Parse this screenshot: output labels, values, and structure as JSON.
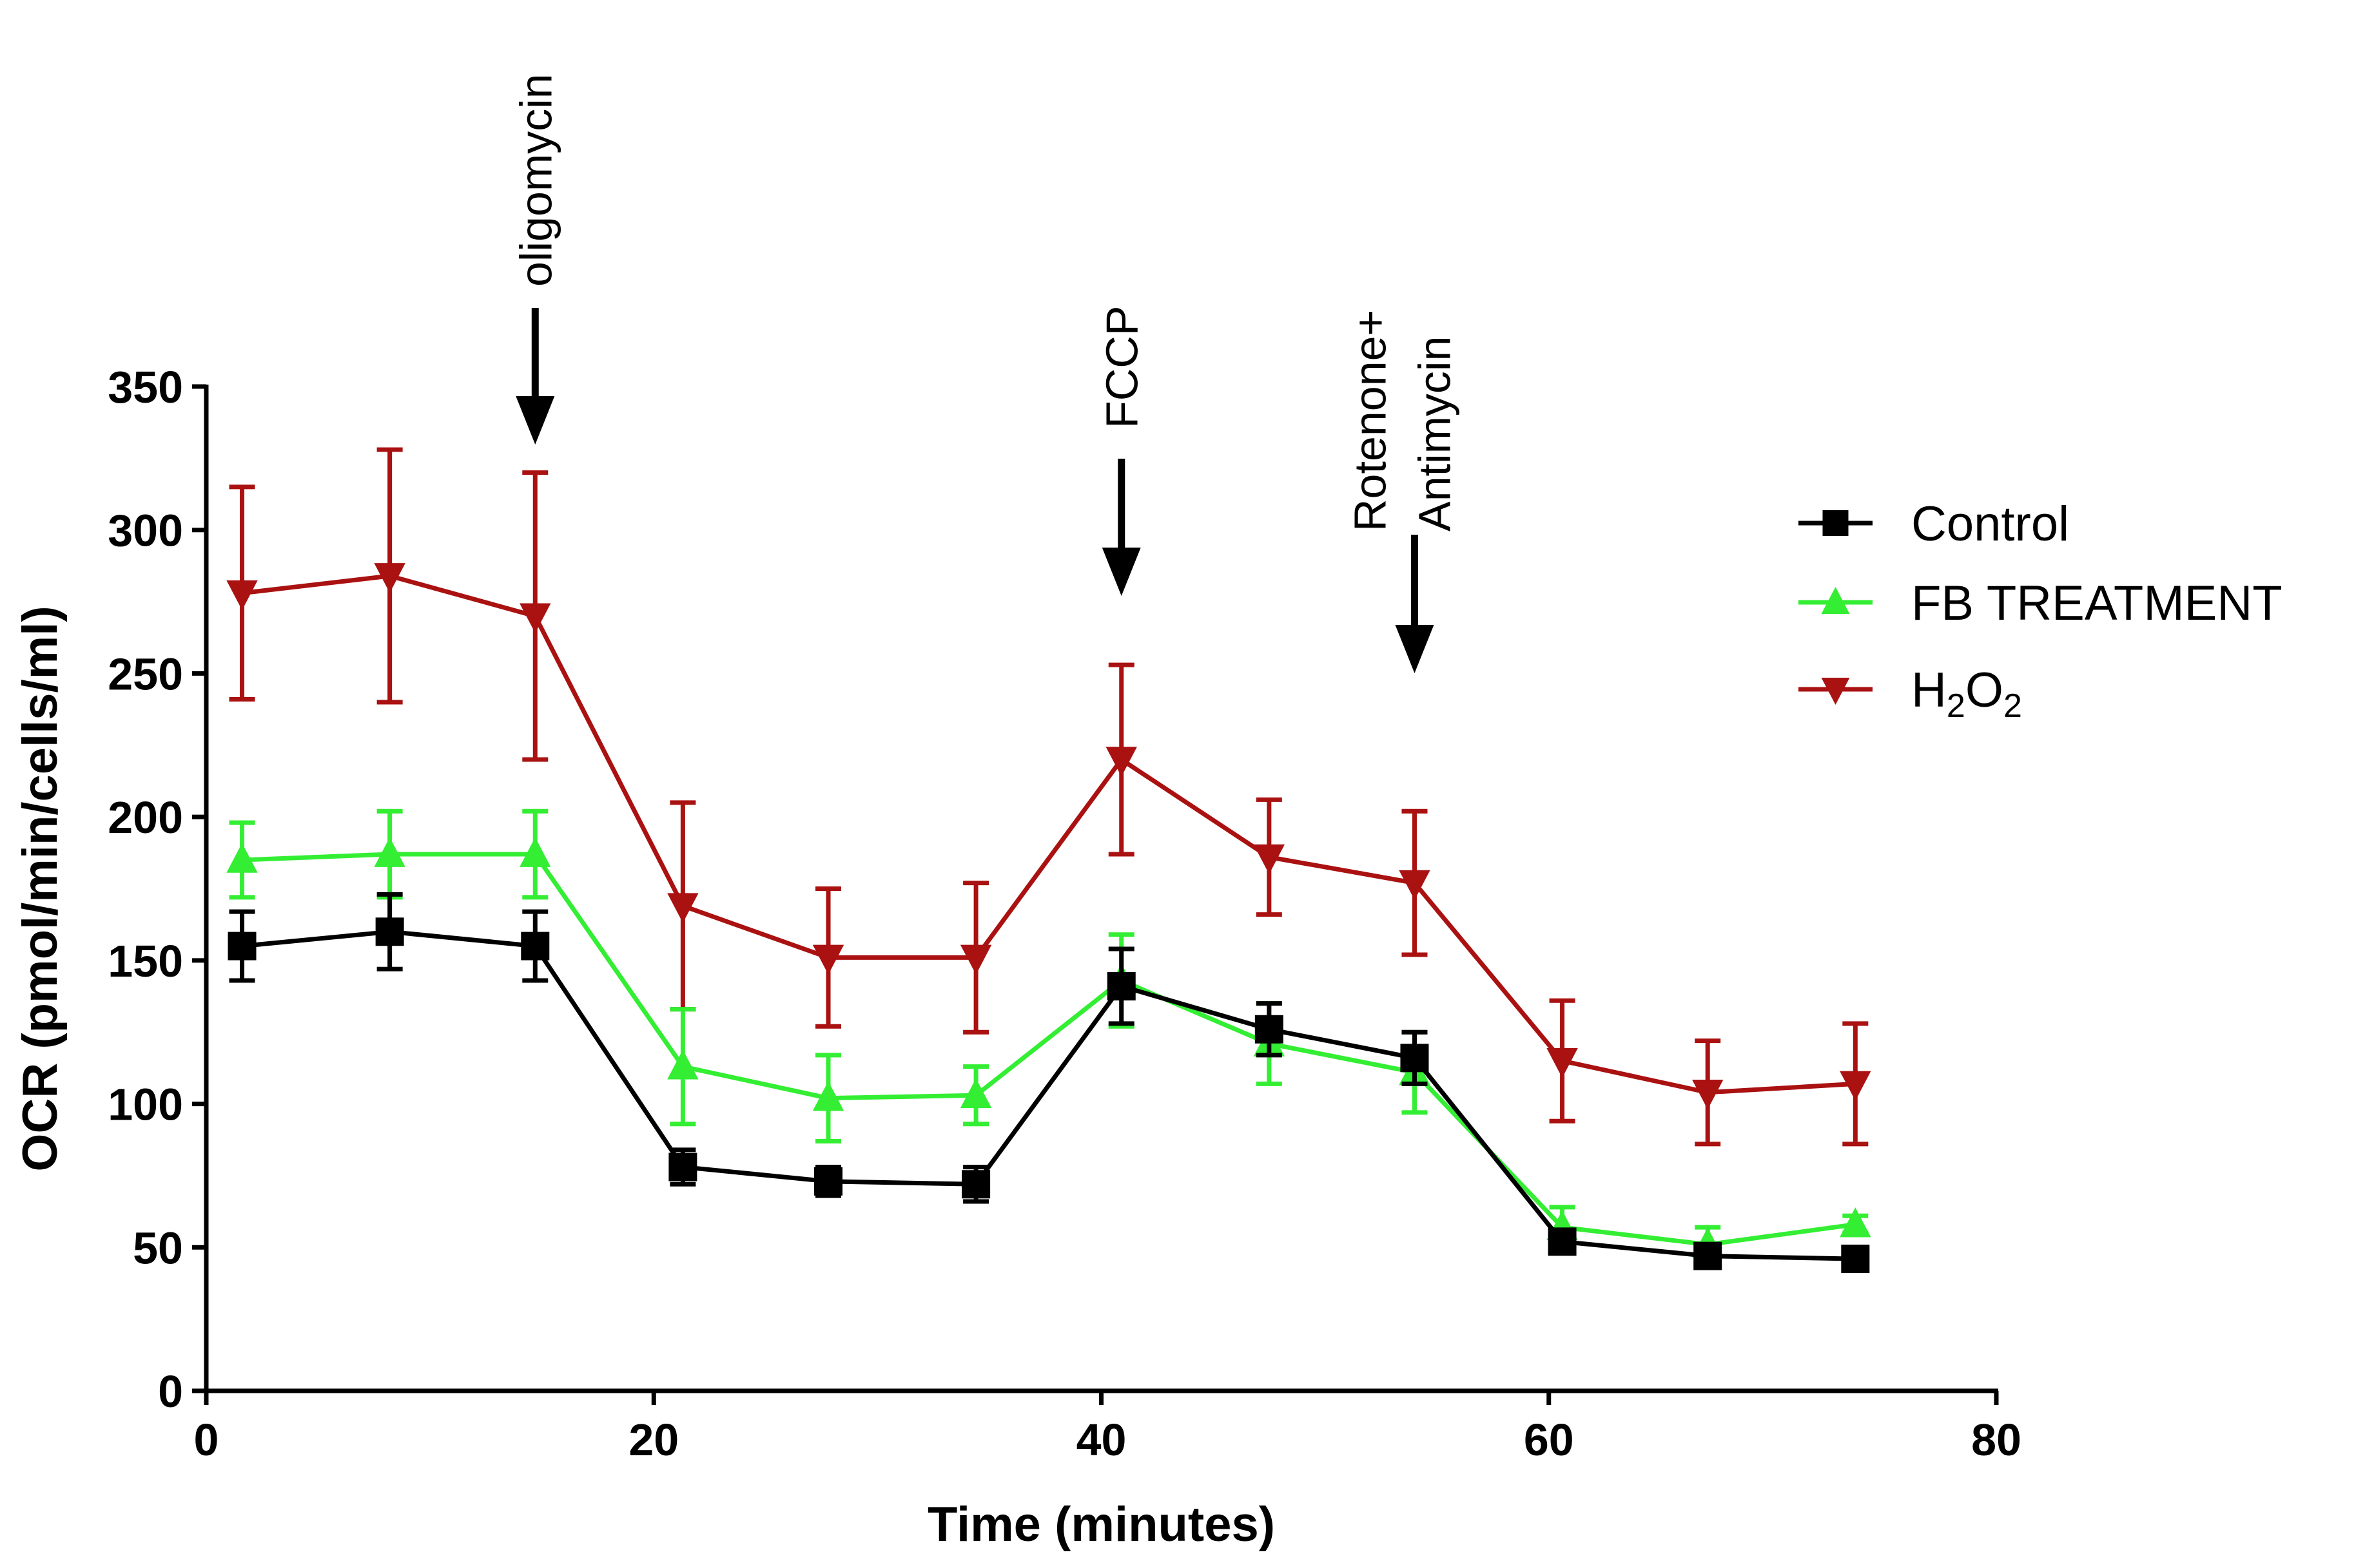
{
  "chart_data": {
    "type": "line",
    "title": "",
    "xlabel": "Time (minutes)",
    "ylabel": "OCR (pmol/min/cells/ml)",
    "xlim": [
      0,
      80
    ],
    "ylim": [
      0,
      350
    ],
    "xticks": [
      0,
      20,
      40,
      60,
      80
    ],
    "yticks": [
      0,
      50,
      100,
      150,
      200,
      250,
      300,
      350
    ],
    "x": [
      1.6,
      8.2,
      14.7,
      21.3,
      27.8,
      34.4,
      40.9,
      47.5,
      54.0,
      60.6,
      67.1,
      73.7
    ],
    "series": [
      {
        "name": "Control",
        "color": "#000000",
        "marker": "square",
        "values": [
          155,
          160,
          155,
          78,
          73,
          72,
          141,
          126,
          116,
          52,
          47,
          46
        ],
        "errors": [
          12,
          13,
          12,
          6,
          5,
          6,
          13,
          9,
          9,
          4,
          4,
          4
        ]
      },
      {
        "name": "FB TREATMENT",
        "color": "#33EE33",
        "marker": "triangle-up",
        "values": [
          185,
          187,
          187,
          113,
          102,
          103,
          143,
          121,
          111,
          57,
          51,
          58
        ],
        "errors": [
          13,
          15,
          15,
          20,
          15,
          10,
          16,
          14,
          14,
          7,
          6,
          3
        ]
      },
      {
        "name": "H2O2",
        "name_base": "H",
        "name_sub1": "2",
        "name_mid": "O",
        "name_sub2": "2",
        "color": "#AA1111",
        "marker": "triangle-down",
        "values": [
          278,
          284,
          270,
          169,
          151,
          151,
          220,
          186,
          177,
          115,
          104,
          107
        ],
        "errors": [
          37,
          44,
          50,
          36,
          24,
          26,
          33,
          20,
          25,
          21,
          18,
          21
        ]
      }
    ],
    "legend_position": "right",
    "annotations": [
      {
        "label": "oligomycin",
        "x": 14.7
      },
      {
        "label": "FCCP",
        "x": 40.9
      },
      {
        "label_line1": "Rotenone+",
        "label_line2": "Antimycin",
        "x": 54.0
      }
    ]
  }
}
